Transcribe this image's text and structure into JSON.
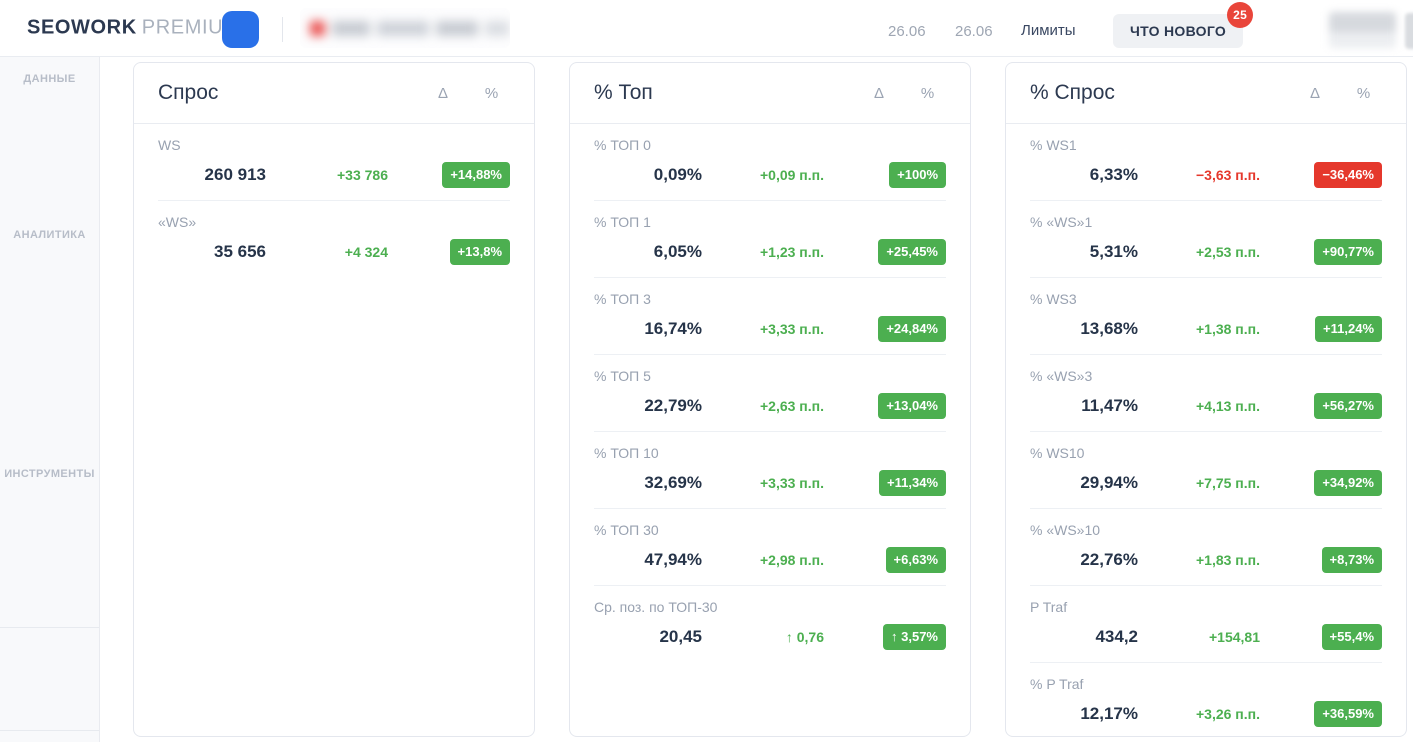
{
  "header": {
    "logo_brand": "SEOWORK",
    "logo_suffix": "PREMIUM",
    "date_from": "26.06",
    "date_to": "26.06",
    "limits_label": "Лимиты",
    "whats_new_label": "ЧТО НОВОГО",
    "whats_new_count": "25"
  },
  "sidebar": {
    "sections": [
      {
        "label": "ДАННЫЕ"
      },
      {
        "label": "АНАЛИТИКА"
      },
      {
        "label": "ИНСТРУМЕНТЫ"
      }
    ]
  },
  "columns": {
    "delta": "Δ",
    "percent": "%"
  },
  "cards": [
    {
      "title": "Спрос",
      "rows": [
        {
          "label": "WS",
          "value": "260 913",
          "delta": "+33 786",
          "badge": "+14,88%",
          "trend": "up"
        },
        {
          "label": "«WS»",
          "value": "35 656",
          "delta": "+4 324",
          "badge": "+13,8%",
          "trend": "up"
        }
      ]
    },
    {
      "title": "% Топ",
      "rows": [
        {
          "label": "% ТОП 0",
          "value": "0,09%",
          "delta": "+0,09 п.п.",
          "badge": "+100%",
          "trend": "up"
        },
        {
          "label": "% ТОП 1",
          "value": "6,05%",
          "delta": "+1,23 п.п.",
          "badge": "+25,45%",
          "trend": "up"
        },
        {
          "label": "% ТОП 3",
          "value": "16,74%",
          "delta": "+3,33 п.п.",
          "badge": "+24,84%",
          "trend": "up"
        },
        {
          "label": "% ТОП 5",
          "value": "22,79%",
          "delta": "+2,63 п.п.",
          "badge": "+13,04%",
          "trend": "up"
        },
        {
          "label": "% ТОП 10",
          "value": "32,69%",
          "delta": "+3,33 п.п.",
          "badge": "+11,34%",
          "trend": "up"
        },
        {
          "label": "% ТОП 30",
          "value": "47,94%",
          "delta": "+2,98 п.п.",
          "badge": "+6,63%",
          "trend": "up"
        },
        {
          "label": "Ср. поз. по ТОП-30",
          "value": "20,45",
          "delta": "↑ 0,76",
          "badge": "↑ 3,57%",
          "trend": "up"
        }
      ]
    },
    {
      "title": "% Спрос",
      "rows": [
        {
          "label": "% WS1",
          "value": "6,33%",
          "delta": "−3,63 п.п.",
          "badge": "−36,46%",
          "trend": "down"
        },
        {
          "label": "% «WS»1",
          "value": "5,31%",
          "delta": "+2,53 п.п.",
          "badge": "+90,77%",
          "trend": "up"
        },
        {
          "label": "% WS3",
          "value": "13,68%",
          "delta": "+1,38 п.п.",
          "badge": "+11,24%",
          "trend": "up"
        },
        {
          "label": "% «WS»3",
          "value": "11,47%",
          "delta": "+4,13 п.п.",
          "badge": "+56,27%",
          "trend": "up"
        },
        {
          "label": "% WS10",
          "value": "29,94%",
          "delta": "+7,75 п.п.",
          "badge": "+34,92%",
          "trend": "up"
        },
        {
          "label": "% «WS»10",
          "value": "22,76%",
          "delta": "+1,83 п.п.",
          "badge": "+8,73%",
          "trend": "up"
        },
        {
          "label": "P Traf",
          "value": "434,2",
          "delta": "+154,81",
          "badge": "+55,4%",
          "trend": "up"
        },
        {
          "label": "% P Traf",
          "value": "12,17%",
          "delta": "+3,26 п.п.",
          "badge": "+36,59%",
          "trend": "up"
        }
      ]
    }
  ],
  "colors": {
    "positive": "#4caf50",
    "negative": "#e5382c",
    "accent_blue": "#2970e8",
    "notification_red": "#e9453a"
  }
}
